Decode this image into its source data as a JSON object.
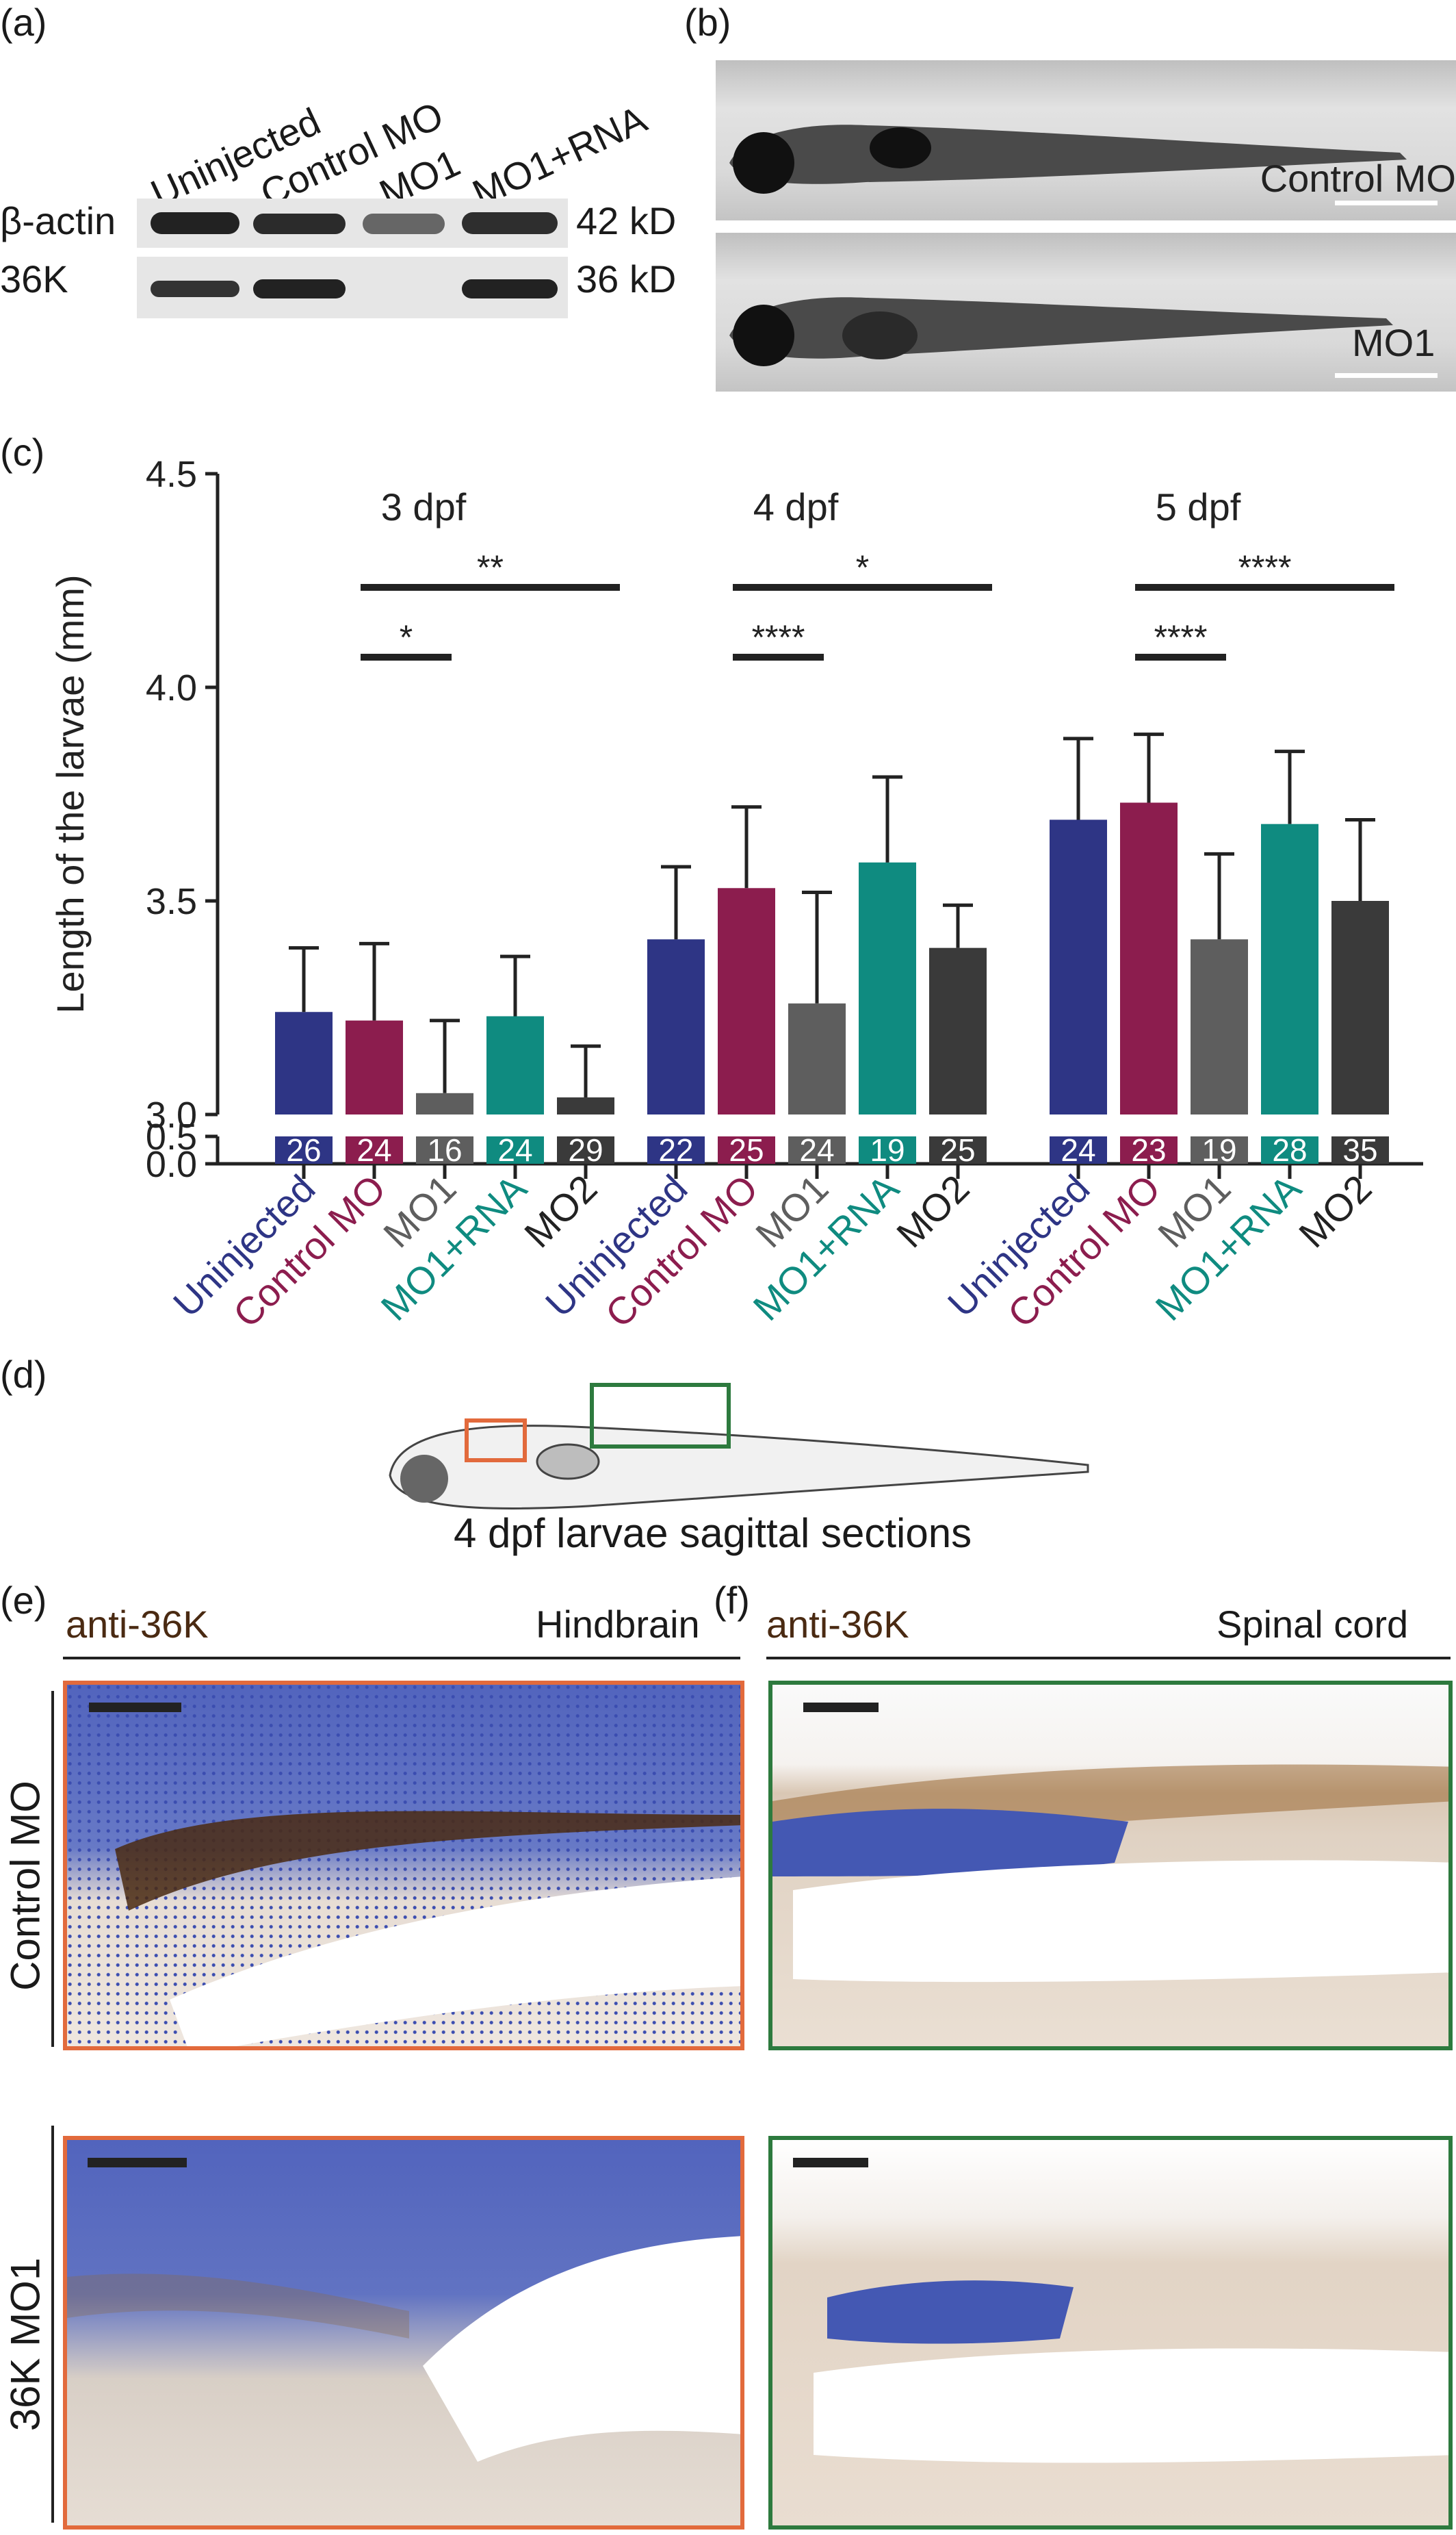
{
  "figure": {
    "panels": {
      "a": "(a)",
      "b": "(b)",
      "c": "(c)",
      "d": "(d)",
      "e": "(e)",
      "f": "(f)"
    },
    "western_blot": {
      "lanes": [
        "Uninjected",
        "Control MO",
        "MO1",
        "MO1+RNA"
      ],
      "rows": [
        {
          "protein": "β-actin",
          "size": "42 kD"
        },
        {
          "protein": "36K",
          "size": "36 kD"
        }
      ]
    },
    "larvae_images": {
      "top_label": "Control MO",
      "bottom_label": "MO1"
    },
    "schematic": {
      "caption": "4 dpf larvae sagittal sections"
    },
    "histology": {
      "e_stain": "anti-36K",
      "e_region": "Hindbrain",
      "f_stain": "anti-36K",
      "f_region": "Spinal cord",
      "row_labels": [
        "Control MO",
        "36K MO1"
      ]
    },
    "colors": {
      "uninjected": "#2e3585",
      "control_mo": "#8c1d4e",
      "mo1": "#5e5e5e",
      "mo1_rna": "#0f8b80",
      "mo2": "#3a3a3a",
      "hindbrain_box": "#e26a3c",
      "spinal_box": "#2d7a3e"
    }
  },
  "chart_data": {
    "type": "bar",
    "ylabel": "Length of the larvae (mm)",
    "y_ticks": [
      "4.5",
      "4.0",
      "3.5",
      "3.0",
      "0.5",
      "0.0"
    ],
    "ylim_upper": [
      3.0,
      4.5
    ],
    "ylim_lower": [
      0.0,
      0.5
    ],
    "axis_break": true,
    "groups": [
      {
        "name": "3 dpf",
        "categories": [
          "Uninjected",
          "Control MO",
          "MO1",
          "MO1+RNA",
          "MO2"
        ],
        "values": [
          3.24,
          3.22,
          3.05,
          3.23,
          3.04
        ],
        "errors": [
          0.15,
          0.18,
          0.17,
          0.14,
          0.12
        ],
        "n": [
          "26",
          "24",
          "16",
          "24",
          "29"
        ],
        "significance": [
          {
            "from": 1,
            "to": 2,
            "label": "*"
          },
          {
            "from": 1,
            "to": 4,
            "label": "**"
          }
        ]
      },
      {
        "name": "4 dpf",
        "categories": [
          "Uninjected",
          "Control MO",
          "MO1",
          "MO1+RNA",
          "MO2"
        ],
        "values": [
          3.41,
          3.53,
          3.26,
          3.59,
          3.39
        ],
        "errors": [
          0.17,
          0.19,
          0.26,
          0.2,
          0.1
        ],
        "n": [
          "22",
          "25",
          "24",
          "19",
          "25"
        ],
        "significance": [
          {
            "from": 1,
            "to": 2,
            "label": "****"
          },
          {
            "from": 1,
            "to": 4,
            "label": "*"
          }
        ]
      },
      {
        "name": "5 dpf",
        "categories": [
          "Uninjected",
          "Control MO",
          "MO1",
          "MO1+RNA",
          "MO2"
        ],
        "values": [
          3.69,
          3.73,
          3.41,
          3.68,
          3.5
        ],
        "errors": [
          0.19,
          0.16,
          0.2,
          0.17,
          0.19
        ],
        "n": [
          "24",
          "23",
          "19",
          "28",
          "35"
        ],
        "significance": [
          {
            "from": 1,
            "to": 2,
            "label": "****"
          },
          {
            "from": 1,
            "to": 4,
            "label": "****"
          }
        ]
      }
    ]
  }
}
